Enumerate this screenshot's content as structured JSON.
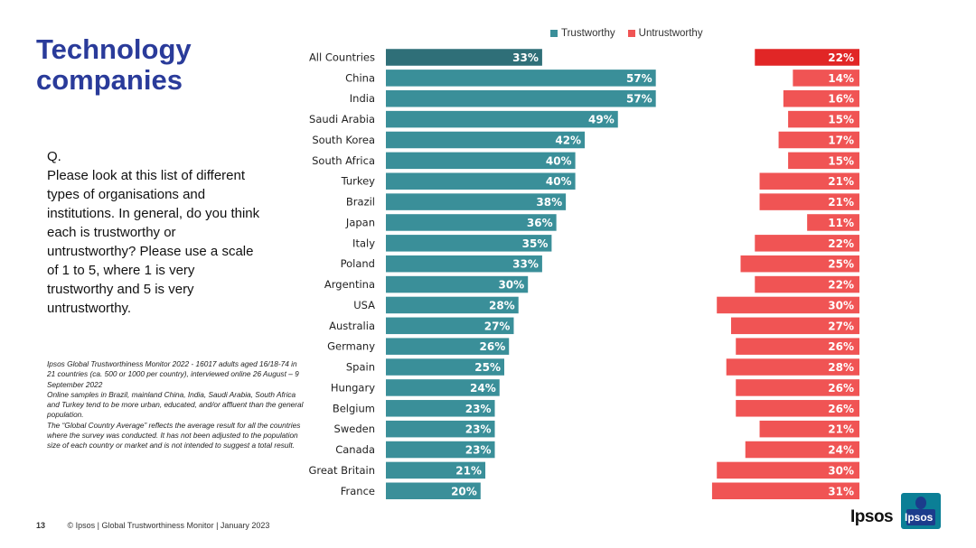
{
  "page": {
    "title": "Technology companies",
    "question_label": "Q.",
    "question_text": "Please look at this list of different types of organisations and institutions. In general, do you think each is trustworthy or untrustworthy? Please use a scale of 1 to 5, where 1 is very trustworthy and 5 is very untrustworthy.",
    "notes": [
      "Ipsos Global Trustworthiness Monitor 2022 - 16017 adults aged 16/18-74 in 21 countries (ca. 500 or 1000 per country), interviewed online 26 August – 9 September 2022",
      "Online samples in Brazil, mainland China, India, Saudi Arabia, South Africa and Turkey tend to be more urban, educated, and/or affluent than the general population.",
      "The “Global Country Average” reflects the average result for all the countries where the survey was conducted. It has not been adjusted to the population size of each country or market and is not intended to suggest a total result."
    ],
    "page_number": "13",
    "footer_text": "© Ipsos | Global Trustworthiness Monitor | January 2023",
    "logo_text": "Ipsos",
    "logo_box_text": "Ipsos"
  },
  "colors": {
    "trust": "#3a8f99",
    "trust_highlight": "#2f6f78",
    "untrust": "#f05454",
    "untrust_highlight": "#e12626",
    "title": "#2a3b9a"
  },
  "chart_data": {
    "type": "bar",
    "orientation": "horizontal",
    "categories": [
      "All Countries",
      "China",
      "India",
      "Saudi Arabia",
      "South Korea",
      "South Africa",
      "Turkey",
      "Brazil",
      "Japan",
      "Italy",
      "Poland",
      "Argentina",
      "USA",
      "Australia",
      "Germany",
      "Spain",
      "Hungary",
      "Belgium",
      "Sweden",
      "Canada",
      "Great Britain",
      "France"
    ],
    "series": [
      {
        "name": "Trustworthy",
        "values": [
          33,
          57,
          57,
          49,
          42,
          40,
          40,
          38,
          36,
          35,
          33,
          30,
          28,
          27,
          26,
          25,
          24,
          23,
          23,
          23,
          21,
          20
        ]
      },
      {
        "name": "Untrustworthy",
        "values": [
          22,
          14,
          16,
          15,
          17,
          15,
          21,
          21,
          11,
          22,
          25,
          22,
          30,
          27,
          26,
          28,
          26,
          26,
          21,
          24,
          30,
          31
        ]
      }
    ],
    "value_suffix": "%",
    "legend_position": "top",
    "highlight_category": "All Countries"
  }
}
